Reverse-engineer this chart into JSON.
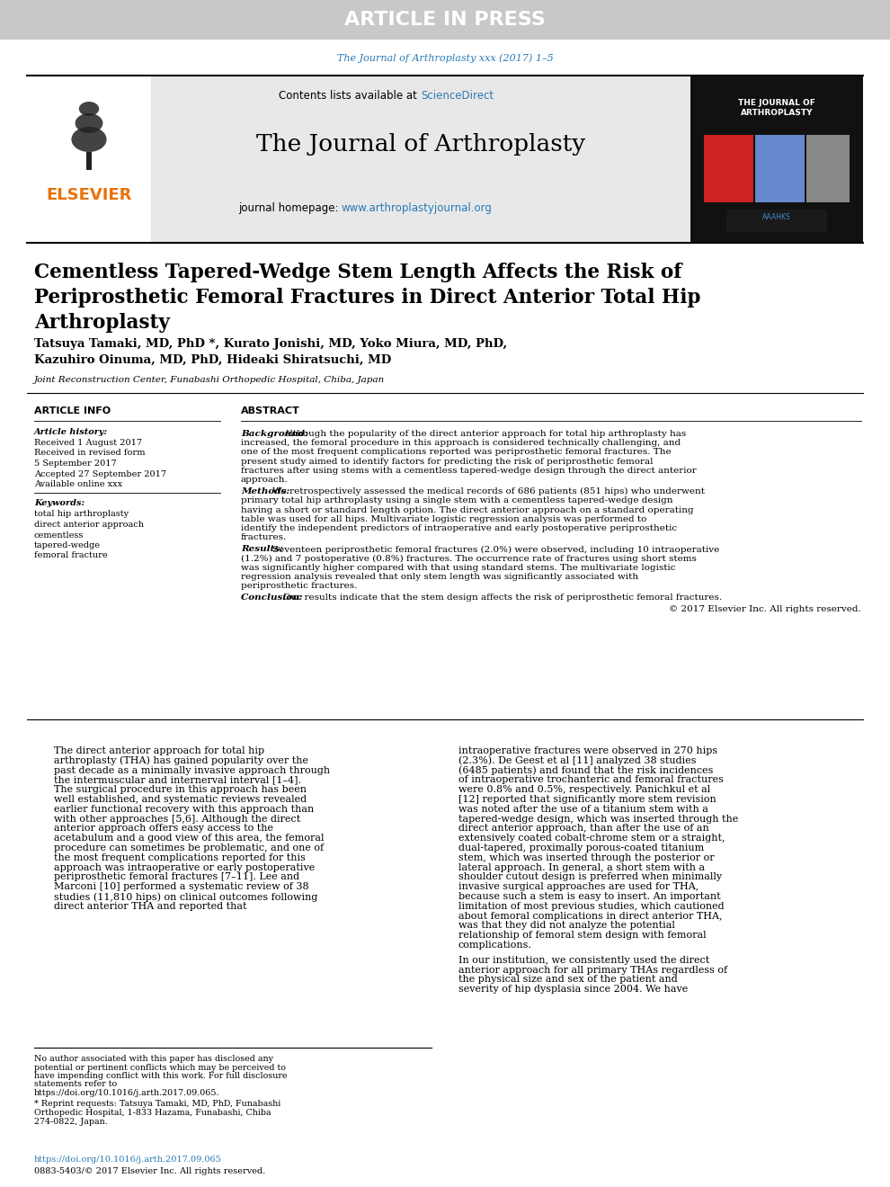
{
  "article_in_press_text": "ARTICLE IN PRESS",
  "article_in_press_bg": "#c8c8c8",
  "journal_citation": "The Journal of Arthroplasty xxx (2017) 1–5",
  "journal_citation_color": "#2a7ab5",
  "journal_name": "The Journal of Arthroplasty",
  "contents_text": "Contents lists available at ",
  "science_direct": "ScienceDirect",
  "science_direct_color": "#2a7ab5",
  "homepage_text": "journal homepage: ",
  "homepage_url": "www.arthroplastyjournal.org",
  "homepage_url_color": "#2a7ab5",
  "elsevier_color": "#e8720c",
  "header_bg": "#e8e8e8",
  "title_line1": "Cementless Tapered-Wedge Stem Length Affects the Risk of",
  "title_line2": "Periprosthetic Femoral Fractures in Direct Anterior Total Hip",
  "title_line3": "Arthroplasty",
  "authors_line1": "Tatsuya Tamaki, MD, PhD *, Kurato Jonishi, MD, Yoko Miura, MD, PhD,",
  "authors_line2": "Kazuhiro Oinuma, MD, PhD, Hideaki Shiratsuchi, MD",
  "affiliation": "Joint Reconstruction Center, Funabashi Orthopedic Hospital, Chiba, Japan",
  "article_info_title": "ARTICLE INFO",
  "article_history_title": "Article history:",
  "hist_lines": [
    "Received 1 August 2017",
    "Received in revised form",
    "5 September 2017",
    "Accepted 27 September 2017",
    "Available online xxx"
  ],
  "keywords_title": "Keywords:",
  "keywords_list": [
    "total hip arthroplasty",
    "direct anterior approach",
    "cementless",
    "tapered-wedge",
    "femoral fracture"
  ],
  "abstract_title": "ABSTRACT",
  "background_label": "Background:",
  "background_text": "Although the popularity of the direct anterior approach for total hip arthroplasty has increased, the femoral procedure in this approach is considered technically challenging, and one of the most frequent complications reported was periprosthetic femoral fractures. The present study aimed to identify factors for predicting the risk of periprosthetic femoral fractures after using stems with a cementless tapered-wedge design through the direct anterior approach.",
  "methods_label": "Methods:",
  "methods_text": "We retrospectively assessed the medical records of 686 patients (851 hips) who underwent primary total hip arthroplasty using a single stem with a cementless tapered-wedge design having a short or standard length option. The direct anterior approach on a standard operating table was used for all hips. Multivariate logistic regression analysis was performed to identify the independent predictors of intraoperative and early postoperative periprosthetic fractures.",
  "results_label": "Results:",
  "results_text": "Seventeen periprosthetic femoral fractures (2.0%) were observed, including 10 intraoperative (1.2%) and 7 postoperative (0.8%) fractures. The occurrence rate of fractures using short stems was significantly higher compared with that using standard stems. The multivariate logistic regression analysis revealed that only stem length was significantly associated with periprosthetic fractures.",
  "conclusion_label": "Conclusion:",
  "conclusion_text": "Our results indicate that the stem design affects the risk of periprosthetic femoral fractures.",
  "conclusion_copy": "© 2017 Elsevier Inc. All rights reserved.",
  "body_col1_para1": "The direct anterior approach for total hip arthroplasty (THA) has gained popularity over the past decade as a minimally invasive approach through the intermuscular and internerval interval [1–4]. The surgical procedure in this approach has been well established, and systematic reviews revealed earlier functional recovery with this approach than with other approaches [5,6]. Although the direct anterior approach offers easy access to the acetabulum and a good view of this area, the femoral procedure can sometimes be problematic, and one of the most frequent complications reported for this approach was intraoperative or early postoperative periprosthetic femoral fractures [7–11]. Lee and Marconi [10] performed a systematic review of 38 studies (11,810 hips) on clinical outcomes following direct anterior THA and reported that",
  "body_col2_para1": "intraoperative fractures were observed in 270 hips (2.3%). De Geest et al [11] analyzed 38 studies (6485 patients) and found that the risk incidences of intraoperative trochanteric and femoral fractures were 0.8% and 0.5%, respectively. Panichkul et al [12] reported that significantly more stem revision was noted after the use of a titanium stem with a tapered-wedge design, which was inserted through the direct anterior approach, than after the use of an extensively coated cobalt-chrome stem or a straight, dual-tapered, proximally porous-coated titanium stem, which was inserted through the posterior or lateral approach. In general, a short stem with a shoulder cutout design is preferred when minimally invasive surgical approaches are used for THA, because such a stem is easy to insert. An important limitation of most previous studies, which cautioned about femoral complications in direct anterior THA, was that they did not analyze the potential relationship of femoral stem design with femoral complications.",
  "body_col2_para2_indent": "   In our institution, we consistently used the direct anterior approach for all primary THAs regardless of the physical size and sex of the patient and severity of hip dysplasia since 2004. We have",
  "footnote1": "No author associated with this paper has disclosed any potential or pertinent conflicts which may be perceived to have impending conflict with this work. For full disclosure statements refer to https://doi.org/10.1016/j.arth.2017.09.065.",
  "footnote2": " * Reprint requests: Tatsuya Tamaki, MD, PhD, Funabashi Orthopedic Hospital, 1-833 Hazama, Funabashi, Chiba 274-0822, Japan.",
  "doi_text": "https://doi.org/10.1016/j.arth.2017.09.065",
  "doi_color": "#2a7ab5",
  "copyright_text": "0883-5403/© 2017 Elsevier Inc. All rights reserved.",
  "bg_color": "#ffffff",
  "text_color": "#000000"
}
